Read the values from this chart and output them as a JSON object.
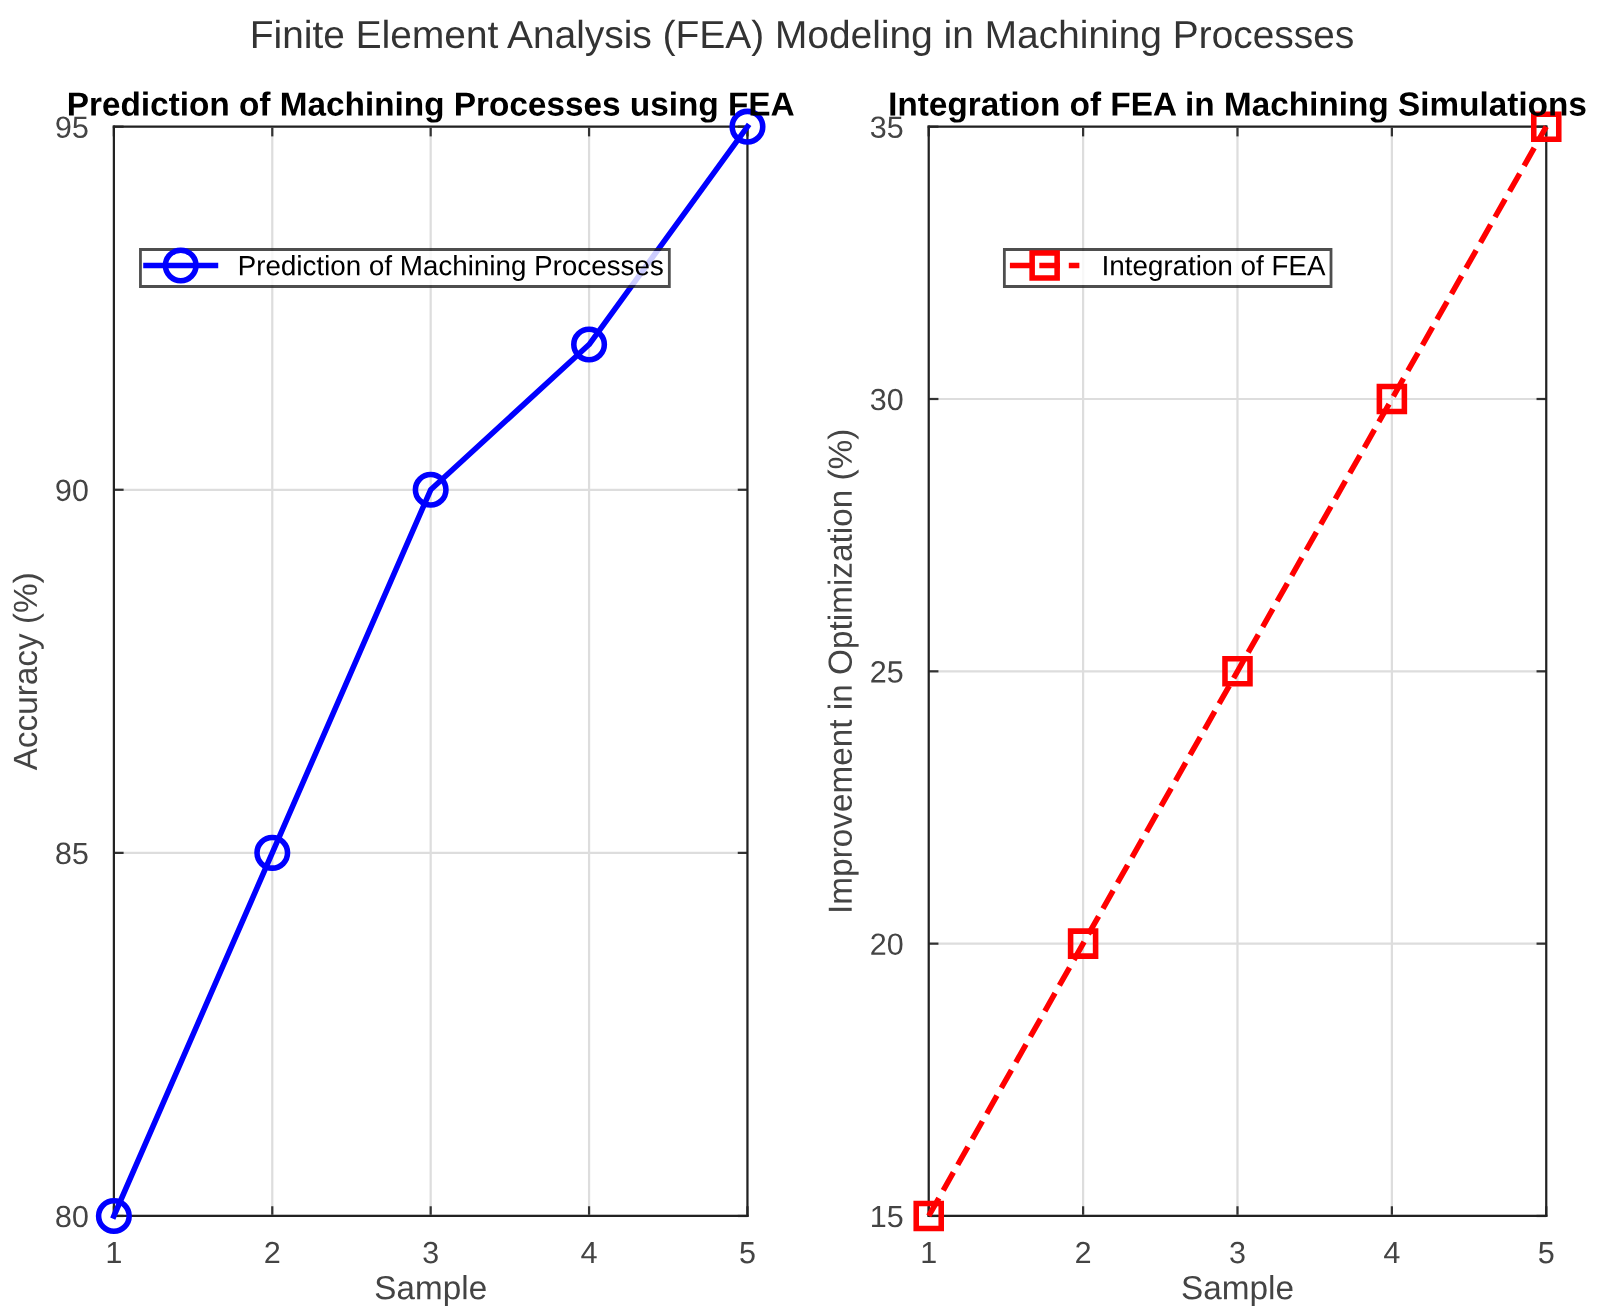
{
  "chart_data": [
    {
      "type": "line",
      "annotations": [
        "Finite Element Analysis (FEA) Modeling in Machining Processes"
      ],
      "title": "Prediction of Machining Processes using FEA",
      "xlabel": "Sample",
      "ylabel": "Accuracy (%)",
      "x": [
        1,
        2,
        3,
        4,
        5
      ],
      "xlim": [
        1,
        5
      ],
      "xticks": [
        1,
        2,
        3,
        4,
        5
      ],
      "ylim": [
        80,
        95
      ],
      "yticks": [
        80,
        85,
        90,
        95
      ],
      "grid": true,
      "legend": "top left",
      "marker": "circle",
      "line_style": "solid",
      "series": [
        {
          "name": "Prediction of Machining Processes",
          "color": "#0000ff",
          "values": [
            80,
            85,
            90,
            92,
            95
          ]
        }
      ]
    },
    {
      "type": "line",
      "title": "Integration of FEA in Machining Simulations",
      "xlabel": "Sample",
      "ylabel": "Improvement in Optimization (%)",
      "x": [
        1,
        2,
        3,
        4,
        5
      ],
      "xlim": [
        1,
        5
      ],
      "xticks": [
        1,
        2,
        3,
        4,
        5
      ],
      "ylim": [
        15,
        35
      ],
      "yticks": [
        15,
        20,
        25,
        30,
        35
      ],
      "grid": true,
      "legend": "top left",
      "marker": "square",
      "line_style": "dashed",
      "series": [
        {
          "name": "Integration of FEA",
          "color": "#ff0000",
          "values": [
            15,
            20,
            25,
            30,
            35
          ]
        }
      ]
    }
  ]
}
